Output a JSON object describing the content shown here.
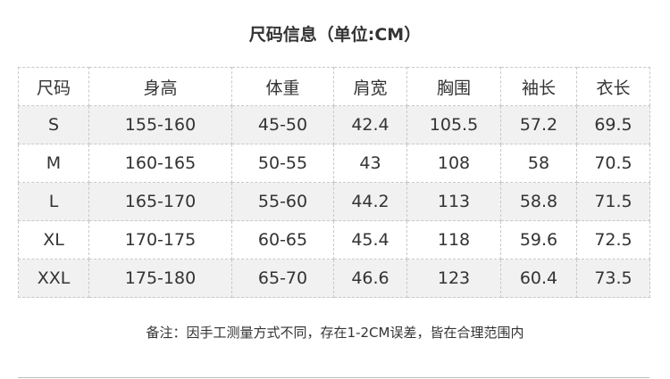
{
  "title": "尺码信息（单位:CM）",
  "table": {
    "headers": [
      "尺码",
      "身高",
      "体重",
      "肩宽",
      "胸围",
      "袖长",
      "衣长"
    ],
    "rows": [
      [
        "S",
        "155-160",
        "45-50",
        "42.4",
        "105.5",
        "57.2",
        "69.5"
      ],
      [
        "M",
        "160-165",
        "50-55",
        "43",
        "108",
        "58",
        "70.5"
      ],
      [
        "L",
        "165-170",
        "55-60",
        "44.2",
        "113",
        "58.8",
        "71.5"
      ],
      [
        "XL",
        "170-175",
        "60-65",
        "45.4",
        "118",
        "59.6",
        "72.5"
      ],
      [
        "XXL",
        "175-180",
        "65-70",
        "46.6",
        "123",
        "60.4",
        "73.5"
      ]
    ]
  },
  "note": "备注：因手工测量方式不同，存在1-2CM误差，皆在合理范围内"
}
